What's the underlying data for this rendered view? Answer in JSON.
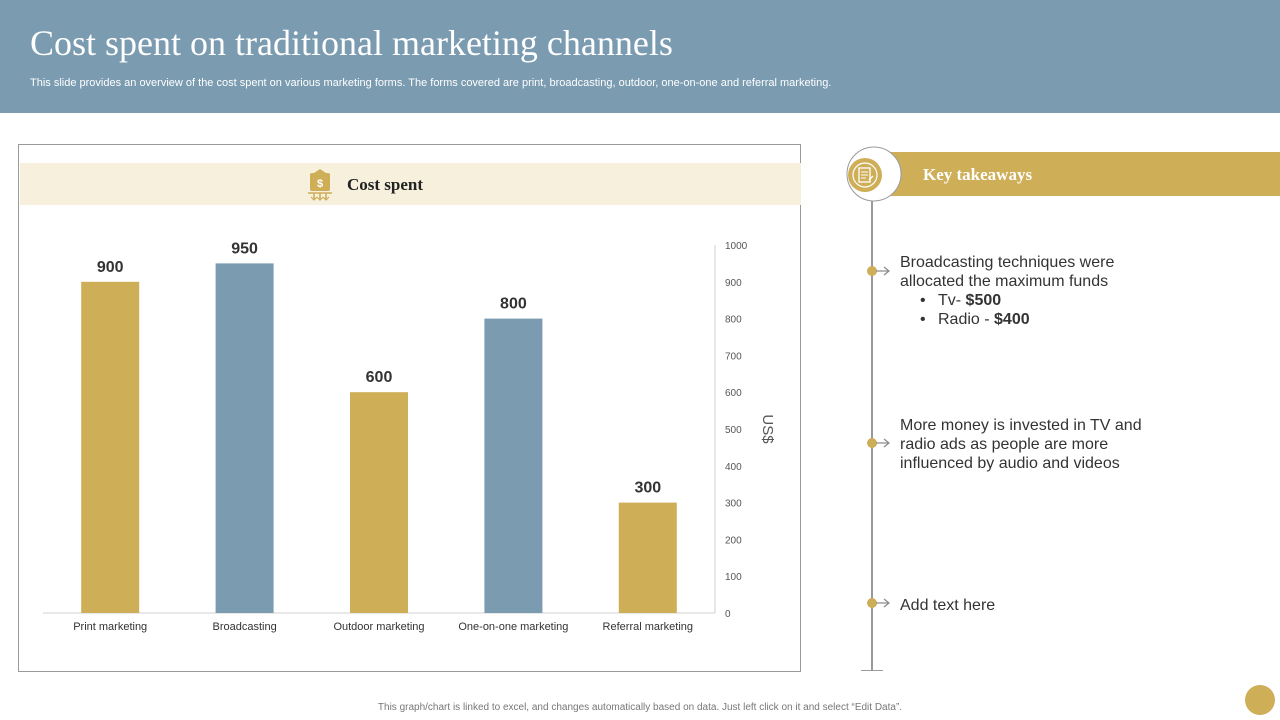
{
  "header": {
    "title": "Cost spent on traditional marketing channels",
    "subtitle": "This slide provides an overview of the cost spent on various marketing forms. The forms covered are print, broadcasting, outdoor, one-on-one and referral marketing."
  },
  "chart_panel": {
    "heading": "Cost spent",
    "icon": "money-hand-icon"
  },
  "chart_data": {
    "type": "bar",
    "categories": [
      "Print marketing",
      "Broadcasting",
      "Outdoor marketing",
      "One-on-one marketing",
      "Referral marketing"
    ],
    "values": [
      900,
      950,
      600,
      800,
      300
    ],
    "data_labels": [
      "900",
      "950",
      "600",
      "800",
      "300"
    ],
    "bar_colors": [
      "#cfae58",
      "#7a9bb0",
      "#cfae58",
      "#7a9bb0",
      "#cfae58"
    ],
    "ylabel": "US$",
    "ylim": [
      0,
      1000
    ],
    "yticks": [
      0,
      100,
      200,
      300,
      400,
      500,
      600,
      700,
      800,
      900,
      1000
    ],
    "y_axis_side": "right",
    "grid": false
  },
  "takeaways": {
    "heading": "Key takeaways",
    "icon": "document-icon",
    "items": [
      {
        "text": "Broadcasting techniques were allocated the maximum funds",
        "bullets": [
          {
            "label": "Tv- ",
            "value": "$500"
          },
          {
            "label": "Radio - ",
            "value": "$400"
          }
        ]
      },
      {
        "text": "More money is invested in TV and radio ads as people are more influenced by audio and videos"
      },
      {
        "text": "Add text here"
      }
    ]
  },
  "footer": {
    "note": "This graph/chart is linked to excel, and changes automatically based on data. Just left click on it and select “Edit Data”."
  },
  "colors": {
    "header_bg": "#7a9bb0",
    "gold": "#cfae58",
    "steel_blue": "#7a9bb0",
    "chart_head_bg": "#f6f0dd"
  }
}
